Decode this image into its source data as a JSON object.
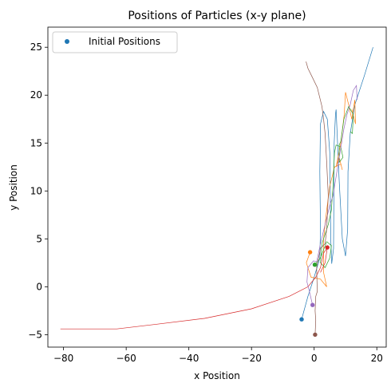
{
  "chart_data": {
    "type": "line",
    "title": "Positions of Particles (x-y plane)",
    "xlabel": "x Position",
    "ylabel": "y Position",
    "xlim": [
      -85,
      23
    ],
    "ylim": [
      -6.3,
      27.1
    ],
    "xticks": [
      -80,
      -60,
      -40,
      -20,
      0,
      20
    ],
    "yticks": [
      -5,
      0,
      5,
      10,
      15,
      20,
      25
    ],
    "grid": false,
    "legend": {
      "location": "upper left",
      "entries": [
        "Initial Positions"
      ]
    },
    "initial_positions": [
      {
        "x": -4.0,
        "y": -3.4,
        "color": "#1f77b4"
      },
      {
        "x": -1.3,
        "y": 3.6,
        "color": "#ff7f0e"
      },
      {
        "x": 0.2,
        "y": 2.3,
        "color": "#2ca02c"
      },
      {
        "x": 4.2,
        "y": 4.1,
        "color": "#d62728"
      },
      {
        "x": -0.5,
        "y": -1.9,
        "color": "#9467bd"
      },
      {
        "x": 0.3,
        "y": -5.0,
        "color": "#8c564b"
      }
    ],
    "series": [
      {
        "color": "#1f77b4",
        "points": [
          [
            -4.0,
            -3.4
          ],
          [
            -2.0,
            -1.0
          ],
          [
            0.0,
            1.0
          ],
          [
            1.8,
            3.0
          ],
          [
            2.0,
            6.0
          ],
          [
            1.8,
            12.0
          ],
          [
            2.0,
            17.0
          ],
          [
            3.0,
            18.3
          ],
          [
            4.2,
            17.5
          ],
          [
            5.0,
            14.0
          ],
          [
            5.3,
            5.0
          ],
          [
            5.6,
            2.4
          ],
          [
            6.2,
            4.0
          ],
          [
            6.4,
            15.0
          ],
          [
            6.8,
            18.0
          ],
          [
            7.0,
            18.5
          ],
          [
            8.0,
            11.0
          ],
          [
            9.0,
            5.0
          ],
          [
            10.0,
            3.2
          ],
          [
            10.7,
            6.0
          ],
          [
            10.8,
            12.0
          ],
          [
            11.5,
            16.0
          ],
          [
            13.0,
            19.0
          ],
          [
            16.0,
            22.0
          ],
          [
            18.8,
            25.0
          ]
        ]
      },
      {
        "color": "#ff7f0e",
        "points": [
          [
            -1.3,
            3.6
          ],
          [
            -2.5,
            2.5
          ],
          [
            -1.0,
            1.0
          ],
          [
            2.0,
            0.8
          ],
          [
            4.0,
            0.0
          ],
          [
            3.0,
            1.5
          ],
          [
            3.0,
            5.0
          ],
          [
            4.0,
            8.0
          ],
          [
            5.0,
            10.5
          ],
          [
            6.5,
            12.5
          ],
          [
            8.5,
            12.8
          ],
          [
            9.0,
            12.2
          ],
          [
            8.0,
            13.5
          ],
          [
            7.0,
            12.5
          ],
          [
            8.5,
            15.0
          ],
          [
            9.6,
            18.0
          ],
          [
            10.0,
            20.3
          ],
          [
            11.0,
            19.0
          ],
          [
            12.0,
            17.5
          ],
          [
            13.0,
            19.5
          ],
          [
            13.2,
            17.0
          ],
          [
            12.0,
            18.5
          ]
        ]
      },
      {
        "color": "#2ca02c",
        "points": [
          [
            0.2,
            2.3
          ],
          [
            2.0,
            3.0
          ],
          [
            4.0,
            4.7
          ],
          [
            5.5,
            4.3
          ],
          [
            5.0,
            3.0
          ],
          [
            3.5,
            2.0
          ],
          [
            2.0,
            2.5
          ],
          [
            2.5,
            4.5
          ],
          [
            4.5,
            6.5
          ],
          [
            5.5,
            8.0
          ],
          [
            6.0,
            10.5
          ],
          [
            6.5,
            14.0
          ],
          [
            7.0,
            14.8
          ],
          [
            8.5,
            14.6
          ],
          [
            9.2,
            13.5
          ],
          [
            8.0,
            13.0
          ],
          [
            8.0,
            14.8
          ],
          [
            8.5,
            15.2
          ],
          [
            9.5,
            17.5
          ],
          [
            11.0,
            18.8
          ],
          [
            12.5,
            18.0
          ],
          [
            12.2,
            16.0
          ],
          [
            11.5,
            16.2
          ]
        ]
      },
      {
        "color": "#d62728",
        "points": [
          [
            -81.0,
            -4.4
          ],
          [
            -63.0,
            -4.4
          ],
          [
            -50.0,
            -3.9
          ],
          [
            -35.0,
            -3.3
          ],
          [
            -20.0,
            -2.3
          ],
          [
            -8.0,
            -1.0
          ],
          [
            -2.0,
            0.0
          ],
          [
            0.5,
            1.0
          ],
          [
            2.0,
            2.0
          ],
          [
            3.0,
            3.5
          ],
          [
            4.2,
            4.1
          ],
          [
            3.5,
            2.5
          ],
          [
            2.0,
            1.5
          ]
        ]
      },
      {
        "color": "#9467bd",
        "points": [
          [
            -0.5,
            -1.9
          ],
          [
            -1.5,
            -0.5
          ],
          [
            -2.3,
            0.5
          ],
          [
            -2.0,
            2.0
          ],
          [
            -0.2,
            2.7
          ],
          [
            0.8,
            2.6
          ],
          [
            1.2,
            3.2
          ],
          [
            2.0,
            4.5
          ],
          [
            3.5,
            6.5
          ],
          [
            5.0,
            8.5
          ],
          [
            6.0,
            9.5
          ],
          [
            7.0,
            11.5
          ],
          [
            8.5,
            14.5
          ],
          [
            9.5,
            16.5
          ],
          [
            10.5,
            18.0
          ],
          [
            11.5,
            19.0
          ],
          [
            12.5,
            20.5
          ],
          [
            13.5,
            21.0
          ],
          [
            13.7,
            19.5
          ]
        ]
      },
      {
        "color": "#8c564b",
        "points": [
          [
            0.3,
            -5.0
          ],
          [
            0.5,
            -3.5
          ],
          [
            0.3,
            -2.5
          ],
          [
            0.5,
            -1.0
          ],
          [
            1.0,
            -0.5
          ],
          [
            0.8,
            2.0
          ],
          [
            2.0,
            4.0
          ],
          [
            3.5,
            4.5
          ],
          [
            4.0,
            6.0
          ],
          [
            4.5,
            9.5
          ],
          [
            4.0,
            13.0
          ],
          [
            3.5,
            16.0
          ],
          [
            3.0,
            17.5
          ],
          [
            2.5,
            18.8
          ],
          [
            1.0,
            20.8
          ],
          [
            -0.8,
            22.0
          ],
          [
            -2.0,
            22.8
          ],
          [
            -2.6,
            23.5
          ]
        ]
      }
    ]
  }
}
